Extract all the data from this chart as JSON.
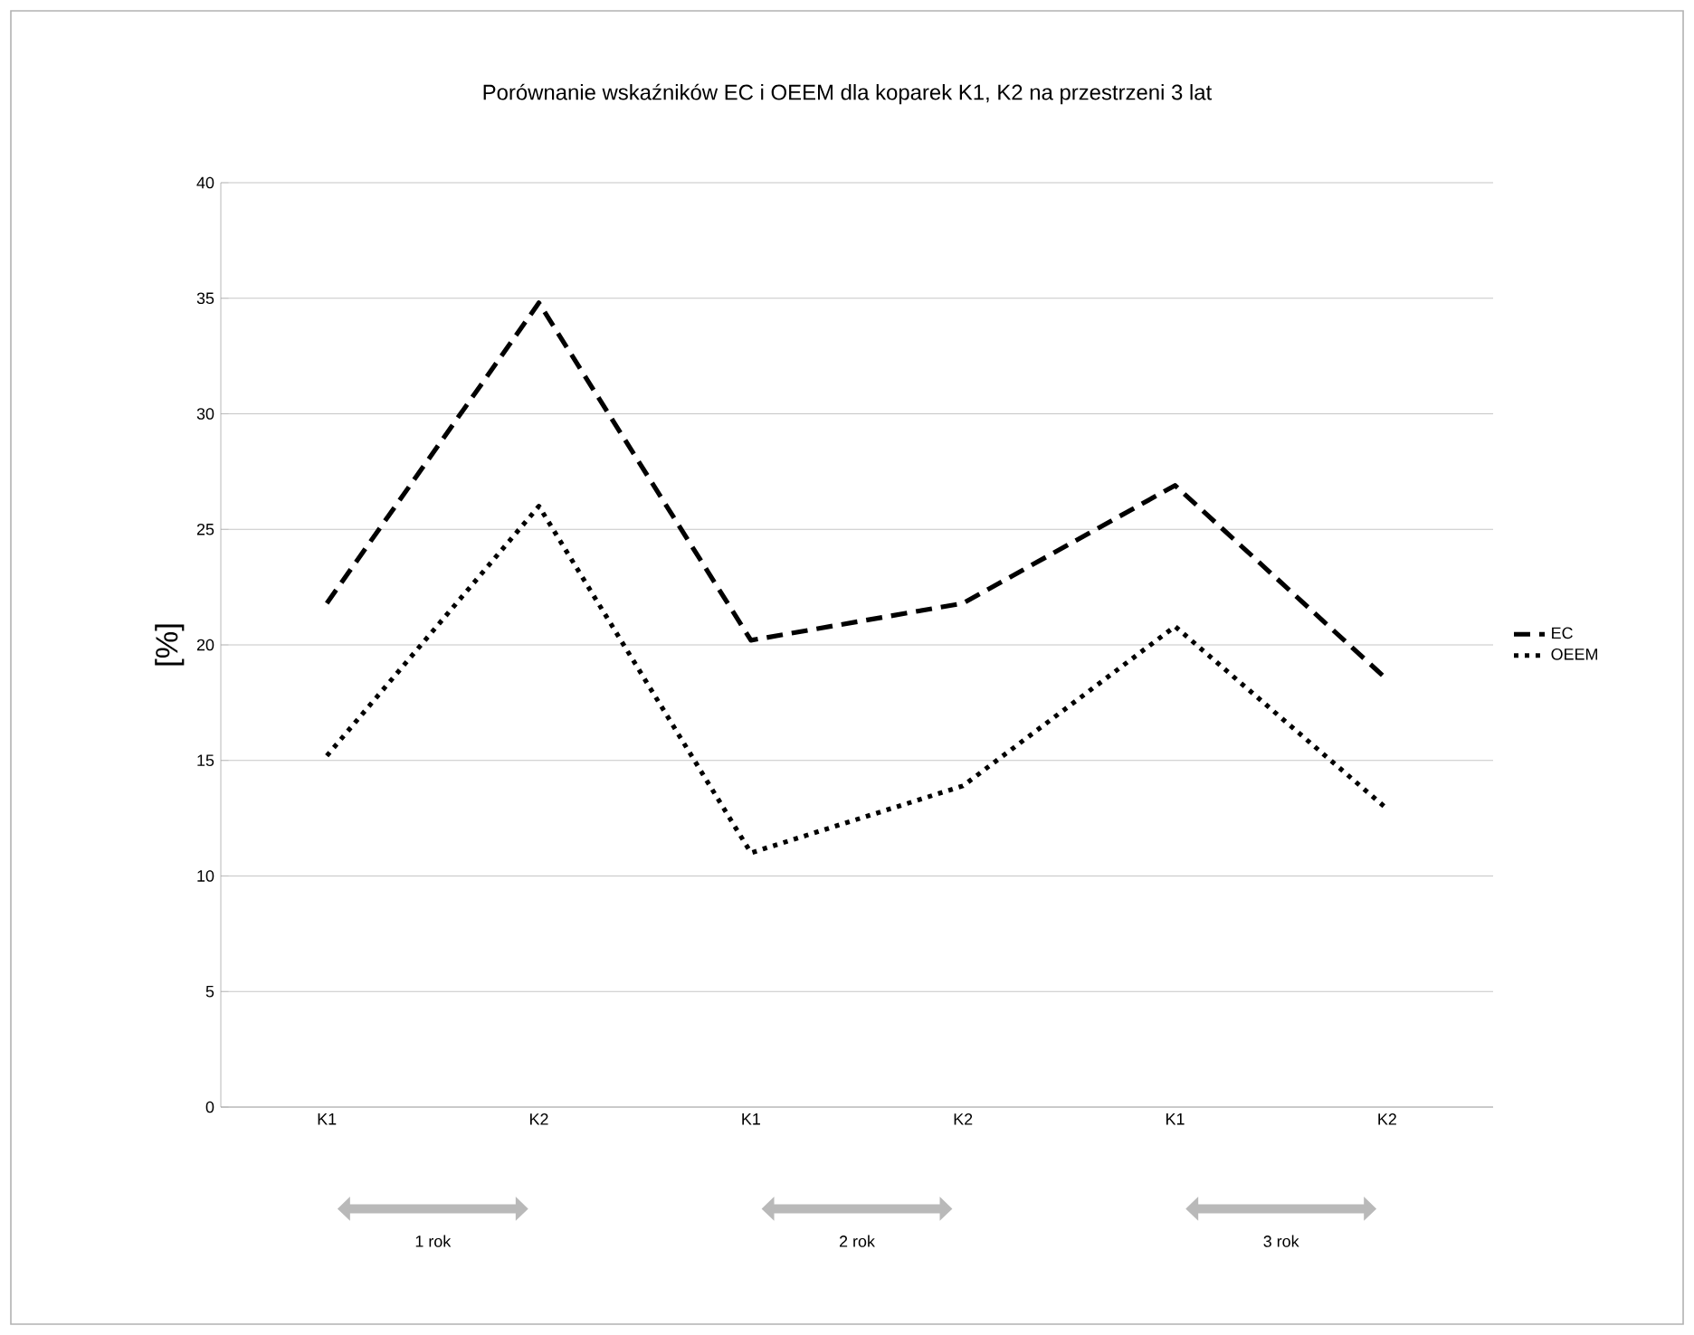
{
  "chart_data": {
    "type": "line",
    "title": "Porównanie wskaźników EC i OEEM dla koparek K1, K2 na przestrzeni 3 lat",
    "ylabel": "[%]",
    "categories": [
      "K1",
      "K2",
      "K1",
      "K2",
      "K1",
      "K2"
    ],
    "series": [
      {
        "name": "EC",
        "color": "#000000",
        "line_style": "dashed",
        "values": [
          21.8,
          34.8,
          20.2,
          21.8,
          26.9,
          18.5
        ]
      },
      {
        "name": "OEEM",
        "color": "#000000",
        "line_style": "dotted",
        "values": [
          15.2,
          26.0,
          11.0,
          13.9,
          20.8,
          12.9
        ]
      }
    ],
    "ylim": [
      0,
      40
    ],
    "yticks": [
      0,
      5,
      10,
      15,
      20,
      25,
      30,
      35,
      40
    ],
    "grid": "y",
    "legend": "right",
    "marker": "none",
    "annotations": [
      "1 rok",
      "2 rok",
      "3 rok"
    ]
  }
}
